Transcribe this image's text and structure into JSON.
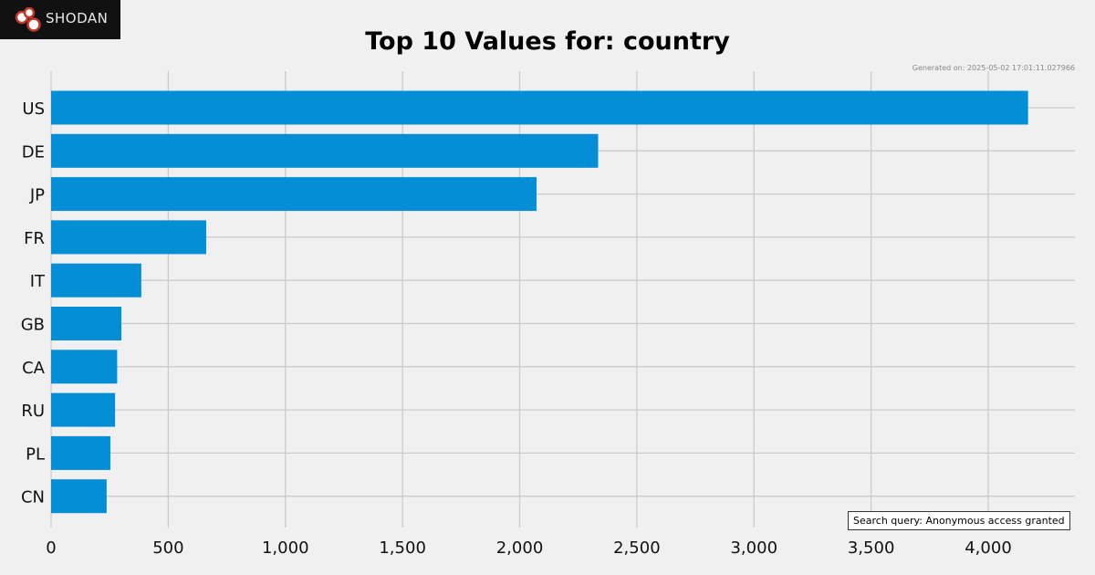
{
  "logo": {
    "text": "SHODAN",
    "bubble_color": "#c0392b"
  },
  "generated_text": "Generated on: 2025-05-02 17:01:11.027966",
  "search_query": "Search query: Anonymous access granted",
  "chart_data": {
    "type": "bar",
    "orientation": "horizontal",
    "title": "Top 10 Values for: country",
    "xlabel": "",
    "ylabel": "",
    "categories": [
      "US",
      "DE",
      "JP",
      "FR",
      "IT",
      "GB",
      "CA",
      "RU",
      "PL",
      "CN"
    ],
    "values": [
      4170,
      2335,
      2072,
      662,
      385,
      300,
      282,
      273,
      253,
      237
    ],
    "xlim": [
      0,
      4370
    ],
    "xticks": [
      0,
      500,
      1000,
      1500,
      2000,
      2500,
      3000,
      3500,
      4000
    ],
    "xtick_labels": [
      "0",
      "500",
      "1,000",
      "1,500",
      "2,000",
      "2,500",
      "3,000",
      "3,500",
      "4,000"
    ],
    "grid": true,
    "bar_color": "#038ed6",
    "grid_color": "#cbcbcb"
  }
}
